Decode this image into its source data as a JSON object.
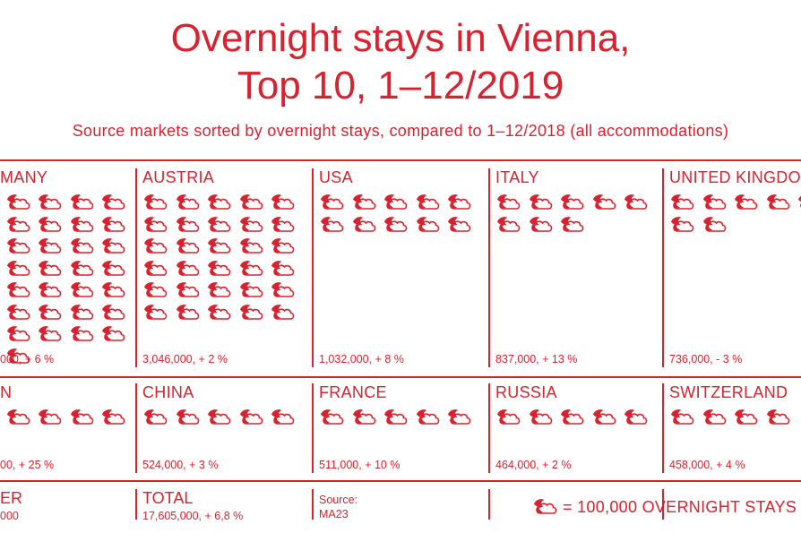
{
  "title_line1": "Overnight stays in Vienna,",
  "title_line2": "Top 10, 1–12/2019",
  "subtitle": "Source markets sorted by overnight stays, compared to 1–12/2018 (all accommodations)",
  "colors": {
    "accent": "#d8222f",
    "background": "#ffffff"
  },
  "icon_name": "cloud-moon-icon",
  "chart_data": {
    "type": "pictogram",
    "unit_label": "= 100,000 OVERNIGHT STAYS",
    "unit_value": 100000,
    "markets": [
      {
        "name": "MANY",
        "value_text": "000, + 6 %",
        "icons": 37
      },
      {
        "name": "AUSTRIA",
        "value_text": "3,046,000, + 2 %",
        "icons": 30
      },
      {
        "name": "USA",
        "value_text": "1,032,000, + 8 %",
        "icons": 10
      },
      {
        "name": "ITALY",
        "value_text": "837,000, + 13 %",
        "icons": 8
      },
      {
        "name": "UNITED KINGDO",
        "value_text": "736,000, - 3 %",
        "icons": 7
      },
      {
        "name": "N",
        "value_text": "00, + 25 %",
        "icons": 6
      },
      {
        "name": "CHINA",
        "value_text": "524,000, + 3 %",
        "icons": 5
      },
      {
        "name": "FRANCE",
        "value_text": "511,000, + 10 %",
        "icons": 5
      },
      {
        "name": "RUSSIA",
        "value_text": "464,000, + 2 %",
        "icons": 5
      },
      {
        "name": "SWITZERLAND",
        "value_text": "458,000, + 4 %",
        "icons": 4
      }
    ]
  },
  "footer": {
    "other_label": "ER",
    "other_value": "000",
    "total_label": "TOTAL",
    "total_value": "17,605,000, + 6,8 %",
    "source_label": "Source:",
    "source_value": "MA23"
  }
}
